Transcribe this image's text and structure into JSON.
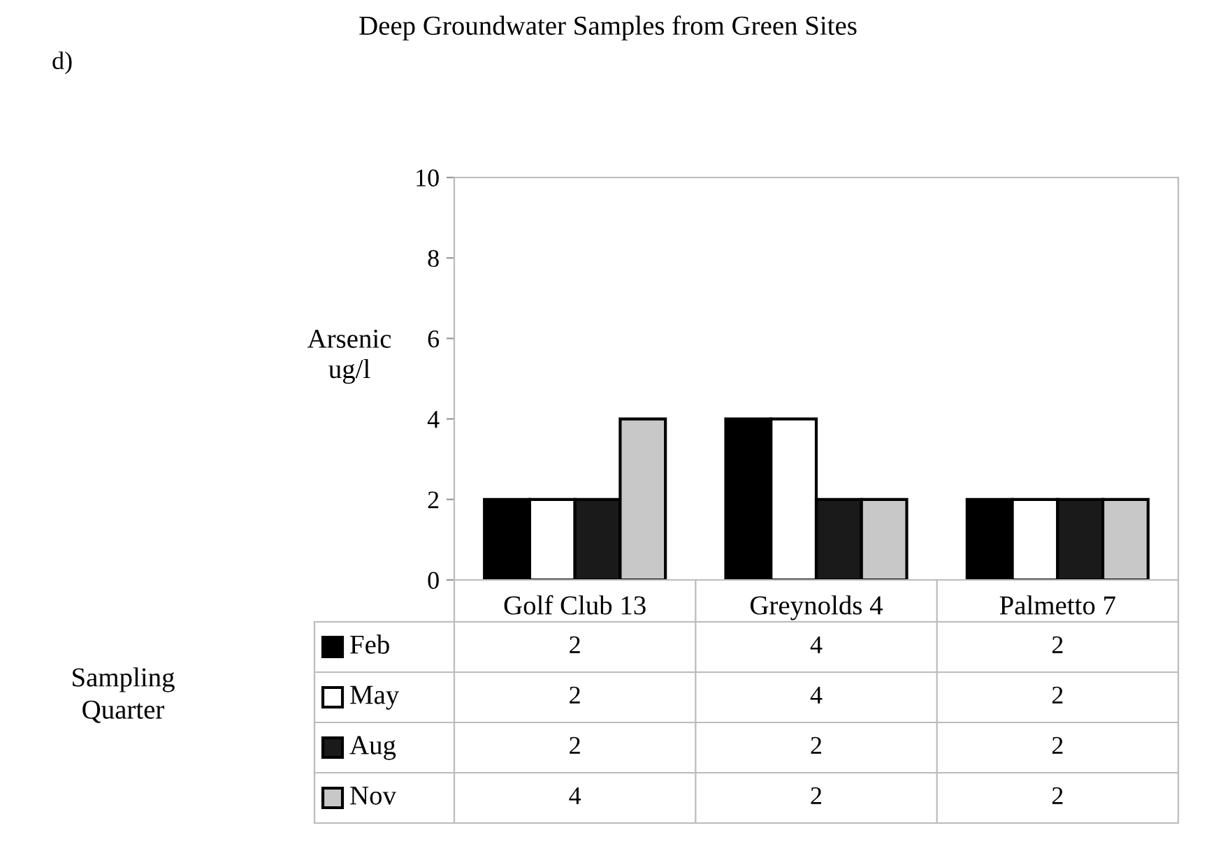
{
  "chart_data": {
    "type": "bar",
    "title": "Deep Groundwater Samples from Green Sites",
    "annotations": [
      "d)"
    ],
    "ylabel": "Arsenic\nug/l",
    "legend_title": "Sampling\nQuarter",
    "categories": [
      "Golf Club 13",
      "Greynolds 4",
      "Palmetto 7"
    ],
    "series": [
      {
        "name": "Feb",
        "color": "#000000",
        "values": [
          2,
          4,
          2
        ]
      },
      {
        "name": "May",
        "color": "#ffffff",
        "values": [
          2,
          4,
          2
        ]
      },
      {
        "name": "Aug",
        "color": "#1a1a1a",
        "values": [
          2,
          2,
          2
        ]
      },
      {
        "name": "Nov",
        "color": "#c8c8c8",
        "values": [
          4,
          2,
          2
        ]
      }
    ],
    "ylim": [
      0,
      10
    ],
    "yticks": [
      0,
      2,
      4,
      6,
      8,
      10
    ],
    "grid": false,
    "legend": "bottom left",
    "data_labels": true
  }
}
